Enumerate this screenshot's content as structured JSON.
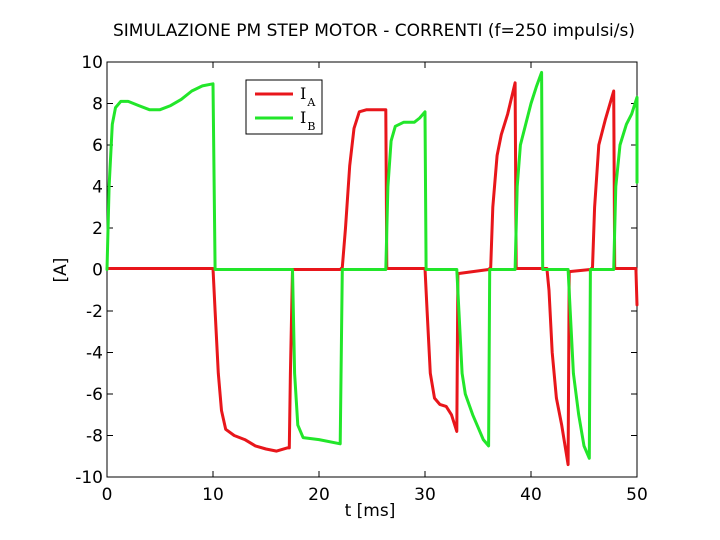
{
  "chart_data": {
    "type": "line",
    "title": "SIMULAZIONE PM STEP MOTOR - CORRENTI (f=250 impulsi/s)",
    "xlabel": "t [ms]",
    "ylabel": "[A]",
    "xlim": [
      0,
      50
    ],
    "ylim": [
      -10,
      10
    ],
    "xticks": [
      0,
      10,
      20,
      30,
      40,
      50
    ],
    "yticks": [
      -10,
      -8,
      -6,
      -4,
      -2,
      0,
      2,
      4,
      6,
      8,
      10
    ],
    "grid": false,
    "legend_position": "top-center",
    "series": [
      {
        "name": "IA",
        "label_main": "I",
        "label_sub": "A",
        "color": "#e8161b",
        "points": [
          [
            0,
            0.05
          ],
          [
            10,
            0.05
          ],
          [
            10.2,
            -2
          ],
          [
            10.5,
            -5
          ],
          [
            10.8,
            -6.8
          ],
          [
            11.2,
            -7.7
          ],
          [
            12,
            -8
          ],
          [
            13,
            -8.2
          ],
          [
            14,
            -8.5
          ],
          [
            15,
            -8.65
          ],
          [
            16,
            -8.75
          ],
          [
            17,
            -8.6
          ],
          [
            17.2,
            -8.6
          ],
          [
            17.3,
            -5
          ],
          [
            17.5,
            0
          ],
          [
            22,
            0
          ],
          [
            22.2,
            0.1
          ],
          [
            22.5,
            2
          ],
          [
            22.9,
            5
          ],
          [
            23.3,
            6.8
          ],
          [
            23.8,
            7.6
          ],
          [
            24.5,
            7.7
          ],
          [
            26.3,
            7.7
          ],
          [
            26.4,
            0.05
          ],
          [
            30,
            0.05
          ],
          [
            30.2,
            -2
          ],
          [
            30.5,
            -5
          ],
          [
            30.9,
            -6.2
          ],
          [
            31.4,
            -6.5
          ],
          [
            32,
            -6.6
          ],
          [
            32.5,
            -7
          ],
          [
            33,
            -7.8
          ],
          [
            33.1,
            -0.2
          ],
          [
            36,
            0
          ],
          [
            36.2,
            0.1
          ],
          [
            36.4,
            3
          ],
          [
            36.8,
            5.5
          ],
          [
            37.2,
            6.5
          ],
          [
            37.8,
            7.5
          ],
          [
            38.5,
            9
          ],
          [
            38.6,
            0.05
          ],
          [
            41.5,
            0.05
          ],
          [
            41.7,
            -1
          ],
          [
            42,
            -4
          ],
          [
            42.4,
            -6.2
          ],
          [
            42.9,
            -7.5
          ],
          [
            43.5,
            -9.4
          ],
          [
            43.6,
            -0.1
          ],
          [
            45.6,
            0
          ],
          [
            45.8,
            0.1
          ],
          [
            46,
            3
          ],
          [
            46.4,
            6
          ],
          [
            47,
            7.2
          ],
          [
            47.8,
            8.6
          ],
          [
            47.9,
            0.05
          ],
          [
            49.9,
            0.05
          ],
          [
            50,
            -1.7
          ]
        ]
      },
      {
        "name": "IB",
        "label_main": "I",
        "label_sub": "B",
        "color": "#22e62a",
        "points": [
          [
            0,
            0
          ],
          [
            0.2,
            4
          ],
          [
            0.5,
            7
          ],
          [
            0.8,
            7.8
          ],
          [
            1.3,
            8.1
          ],
          [
            2,
            8.1
          ],
          [
            3,
            7.9
          ],
          [
            4,
            7.7
          ],
          [
            5,
            7.7
          ],
          [
            6,
            7.9
          ],
          [
            7,
            8.2
          ],
          [
            8,
            8.6
          ],
          [
            9,
            8.85
          ],
          [
            10,
            8.95
          ],
          [
            10.2,
            0
          ],
          [
            17.5,
            0
          ],
          [
            17.7,
            -5
          ],
          [
            18,
            -7.5
          ],
          [
            18.5,
            -8.1
          ],
          [
            20,
            -8.2
          ],
          [
            22,
            -8.4
          ],
          [
            22.2,
            0
          ],
          [
            26.3,
            0
          ],
          [
            26.5,
            4
          ],
          [
            26.8,
            6.2
          ],
          [
            27.2,
            6.9
          ],
          [
            28,
            7.1
          ],
          [
            29,
            7.1
          ],
          [
            29.5,
            7.3
          ],
          [
            30,
            7.6
          ],
          [
            30.1,
            0
          ],
          [
            33,
            0
          ],
          [
            33.2,
            -2
          ],
          [
            33.5,
            -5
          ],
          [
            33.8,
            -6
          ],
          [
            34.5,
            -7
          ],
          [
            35,
            -7.6
          ],
          [
            35.5,
            -8.2
          ],
          [
            36,
            -8.5
          ],
          [
            36.1,
            0
          ],
          [
            38.5,
            0
          ],
          [
            38.7,
            4
          ],
          [
            39,
            6
          ],
          [
            39.5,
            7
          ],
          [
            40,
            8
          ],
          [
            40.5,
            8.8
          ],
          [
            41,
            9.5
          ],
          [
            41.1,
            0
          ],
          [
            43.5,
            0
          ],
          [
            43.7,
            -2
          ],
          [
            44,
            -5
          ],
          [
            44.5,
            -7
          ],
          [
            45,
            -8.5
          ],
          [
            45.5,
            -9.1
          ],
          [
            45.6,
            0
          ],
          [
            47.8,
            0
          ],
          [
            48,
            4
          ],
          [
            48.4,
            6
          ],
          [
            49,
            7
          ],
          [
            49.5,
            7.5
          ],
          [
            50,
            8.3
          ],
          [
            50,
            4.2
          ]
        ]
      }
    ]
  }
}
